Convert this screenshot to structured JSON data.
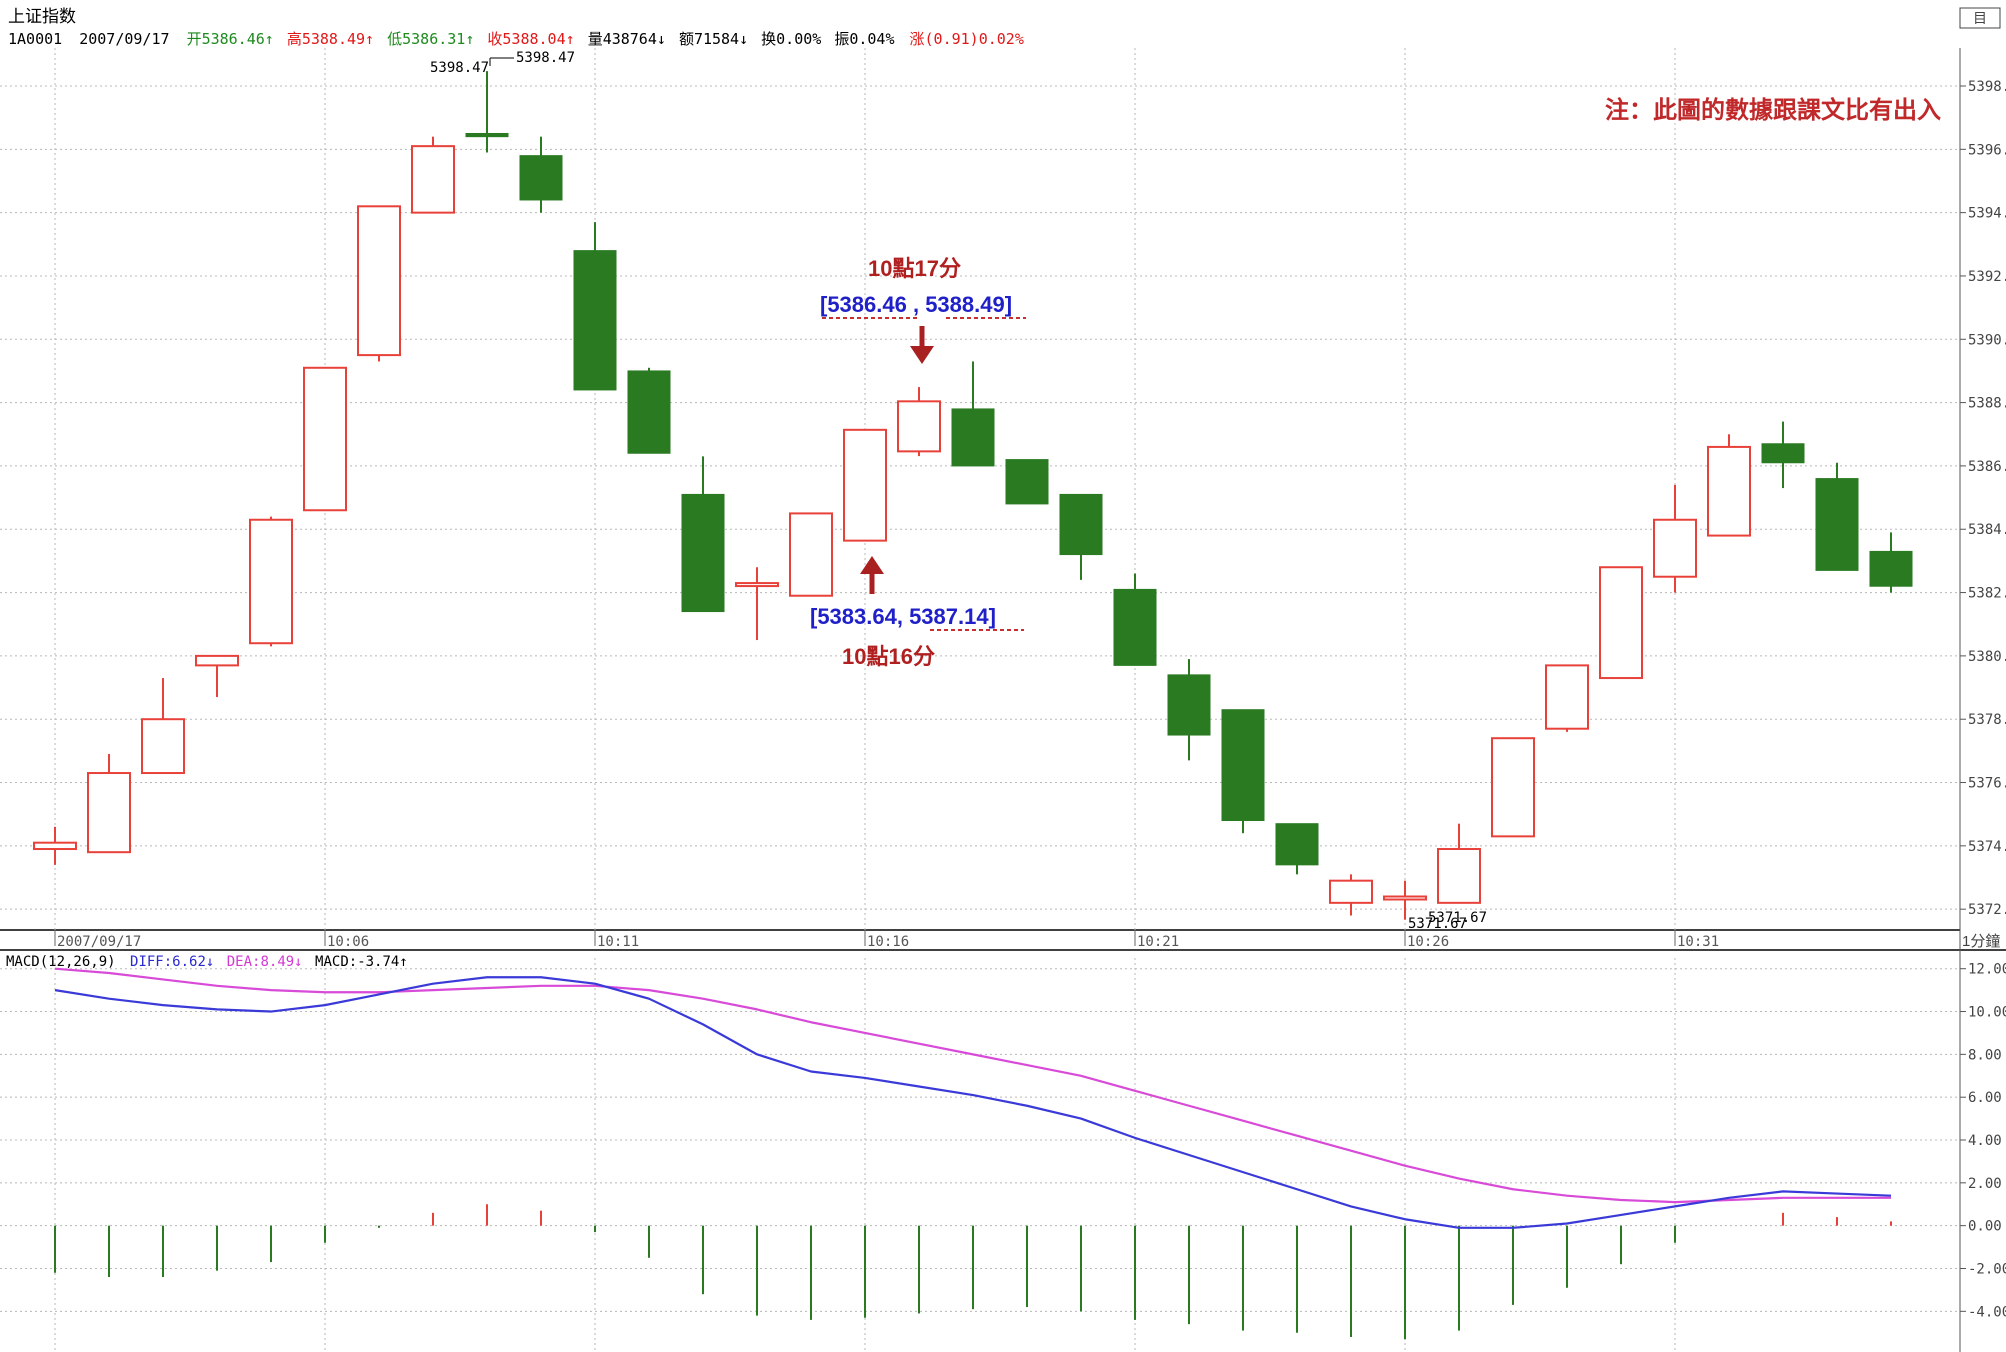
{
  "header": {
    "index_name": "上证指数",
    "code": "1A0001",
    "date": "2007/09/17",
    "open": "开5386.46↑",
    "high": "高5388.49↑",
    "low": "低5386.31↑",
    "close": "收5388.04↑",
    "volume": "量438764↓",
    "amount": "额71584↓",
    "turnover": "换0.00%",
    "amplitude": "振0.04%",
    "change": "涨(0.91)0.02%"
  },
  "note": "注：此圖的數據跟課文比有出入",
  "annotations": {
    "upper_time": "10點17分",
    "upper_values": "[5386.46 ,  5388.49]",
    "lower_values": "[5383.64,  5387.14]",
    "lower_time": "10點16分",
    "max_label_left": "5398.47",
    "max_label_right": "5398.47",
    "min_label_a": "5371.67",
    "min_label_b": "5371.67"
  },
  "macd_header": {
    "name": "MACD(12,26,9)",
    "diff": "DIFF:6.62↓",
    "dea": "DEA:8.49↓",
    "macd": "MACD:-3.74↑"
  },
  "colors": {
    "up": "#e8413a",
    "down": "#2a7a22",
    "diff_line": "#3a3ad8",
    "dea_line": "#d84ad8",
    "note": "#c0282a",
    "bracket": "#2020c8",
    "grid": "#b8b8b8"
  },
  "chart_data": {
    "type": "candlestick",
    "ylim": [
      5371.5,
      5399.2
    ],
    "y_ticks": [
      "5398.0",
      "5396.0",
      "5394.0",
      "5392.0",
      "5390.0",
      "5388.0",
      "5386.0",
      "5384.0",
      "5382.0",
      "5380.0",
      "5378.0",
      "5376.0",
      "5374.0",
      "5372.0"
    ],
    "x_axis_labels": [
      "2007/09/17",
      "10:06",
      "10:11",
      "10:16",
      "10:21",
      "10:26",
      "10:31"
    ],
    "x_axis_label_index": [
      0,
      5,
      10,
      15,
      20,
      25,
      30
    ],
    "x_unit_label": "1分鐘",
    "candles": [
      {
        "o": 5373.9,
        "c": 5374.1,
        "h": 5374.6,
        "l": 5373.4
      },
      {
        "o": 5373.8,
        "c": 5376.3,
        "h": 5376.9,
        "l": 5373.8
      },
      {
        "o": 5376.3,
        "c": 5378.0,
        "h": 5379.3,
        "l": 5376.3
      },
      {
        "o": 5379.7,
        "c": 5380.0,
        "h": 5380.0,
        "l": 5378.7
      },
      {
        "o": 5380.4,
        "c": 5384.3,
        "h": 5384.4,
        "l": 5380.3
      },
      {
        "o": 5384.6,
        "c": 5389.1,
        "h": 5389.1,
        "l": 5384.6
      },
      {
        "o": 5389.5,
        "c": 5394.2,
        "h": 5394.2,
        "l": 5389.3
      },
      {
        "o": 5394.0,
        "c": 5396.1,
        "h": 5396.4,
        "l": 5394.0
      },
      {
        "o": 5396.5,
        "c": 5396.4,
        "h": 5398.47,
        "l": 5395.9
      },
      {
        "o": 5395.8,
        "c": 5394.4,
        "h": 5396.4,
        "l": 5394.0
      },
      {
        "o": 5392.8,
        "c": 5388.4,
        "h": 5393.7,
        "l": 5388.4
      },
      {
        "o": 5389.0,
        "c": 5386.4,
        "h": 5389.1,
        "l": 5386.4
      },
      {
        "o": 5385.1,
        "c": 5381.4,
        "h": 5386.3,
        "l": 5381.4
      },
      {
        "o": 5382.3,
        "c": 5382.3,
        "h": 5382.8,
        "l": 5380.5
      },
      {
        "o": 5381.9,
        "c": 5384.5,
        "h": 5384.5,
        "l": 5381.9
      },
      {
        "o": 5383.64,
        "c": 5387.14,
        "h": 5387.14,
        "l": 5383.64
      },
      {
        "o": 5386.46,
        "c": 5388.04,
        "h": 5388.49,
        "l": 5386.31
      },
      {
        "o": 5387.8,
        "c": 5386.0,
        "h": 5389.3,
        "l": 5386.0
      },
      {
        "o": 5386.2,
        "c": 5384.8,
        "h": 5386.2,
        "l": 5384.8
      },
      {
        "o": 5385.1,
        "c": 5383.2,
        "h": 5385.1,
        "l": 5382.4
      },
      {
        "o": 5382.1,
        "c": 5379.7,
        "h": 5382.6,
        "l": 5379.7
      },
      {
        "o": 5379.4,
        "c": 5377.5,
        "h": 5379.9,
        "l": 5376.7
      },
      {
        "o": 5378.3,
        "c": 5374.8,
        "h": 5378.3,
        "l": 5374.4
      },
      {
        "o": 5374.7,
        "c": 5373.4,
        "h": 5374.7,
        "l": 5373.1
      },
      {
        "o": 5372.2,
        "c": 5372.9,
        "h": 5373.1,
        "l": 5371.8
      },
      {
        "o": 5372.4,
        "c": 5372.4,
        "h": 5372.9,
        "l": 5371.67
      },
      {
        "o": 5372.2,
        "c": 5373.9,
        "h": 5374.7,
        "l": 5372.2
      },
      {
        "o": 5374.3,
        "c": 5377.4,
        "h": 5377.4,
        "l": 5374.3
      },
      {
        "o": 5377.7,
        "c": 5379.7,
        "h": 5379.7,
        "l": 5377.6
      },
      {
        "o": 5379.3,
        "c": 5382.8,
        "h": 5382.8,
        "l": 5379.3
      },
      {
        "o": 5382.5,
        "c": 5384.3,
        "h": 5385.4,
        "l": 5382.0
      },
      {
        "o": 5383.8,
        "c": 5386.6,
        "h": 5387.0,
        "l": 5383.8
      },
      {
        "o": 5386.7,
        "c": 5386.1,
        "h": 5387.4,
        "l": 5385.3
      },
      {
        "o": 5385.6,
        "c": 5382.7,
        "h": 5386.1,
        "l": 5382.7
      },
      {
        "o": 5383.3,
        "c": 5382.2,
        "h": 5383.9,
        "l": 5382.0
      }
    ],
    "macd": {
      "ylim": [
        -5.9,
        12.5
      ],
      "y_ticks": [
        "12.00",
        "10.00",
        "8.00",
        "6.00",
        "4.00",
        "2.00",
        "0.00",
        "-2.00",
        "-4.00"
      ],
      "diff": [
        11.0,
        10.6,
        10.3,
        10.1,
        10.0,
        10.3,
        10.8,
        11.3,
        11.6,
        11.6,
        11.3,
        10.6,
        9.4,
        8.0,
        7.2,
        6.9,
        6.5,
        6.1,
        5.6,
        5.0,
        4.1,
        3.3,
        2.5,
        1.7,
        0.9,
        0.3,
        -0.1,
        -0.1,
        0.1,
        0.5,
        0.9,
        1.3,
        1.6,
        1.5,
        1.4
      ],
      "dea": [
        12.0,
        11.8,
        11.5,
        11.2,
        11.0,
        10.9,
        10.9,
        11.0,
        11.1,
        11.2,
        11.2,
        11.0,
        10.6,
        10.1,
        9.5,
        9.0,
        8.5,
        8.0,
        7.5,
        7.0,
        6.3,
        5.6,
        4.9,
        4.2,
        3.5,
        2.8,
        2.2,
        1.7,
        1.4,
        1.2,
        1.1,
        1.2,
        1.3,
        1.3,
        1.3
      ],
      "bars": [
        -2.2,
        -2.4,
        -2.4,
        -2.1,
        -1.7,
        -0.8,
        -0.1,
        0.6,
        1.0,
        0.7,
        -0.3,
        -1.5,
        -3.2,
        -4.2,
        -4.4,
        -4.3,
        -4.1,
        -3.9,
        -3.8,
        -4.0,
        -4.4,
        -4.6,
        -4.9,
        -5.0,
        -5.2,
        -5.3,
        -4.9,
        -3.7,
        -2.9,
        -1.8,
        -0.8,
        0.0,
        0.6,
        0.4,
        0.2
      ]
    }
  }
}
